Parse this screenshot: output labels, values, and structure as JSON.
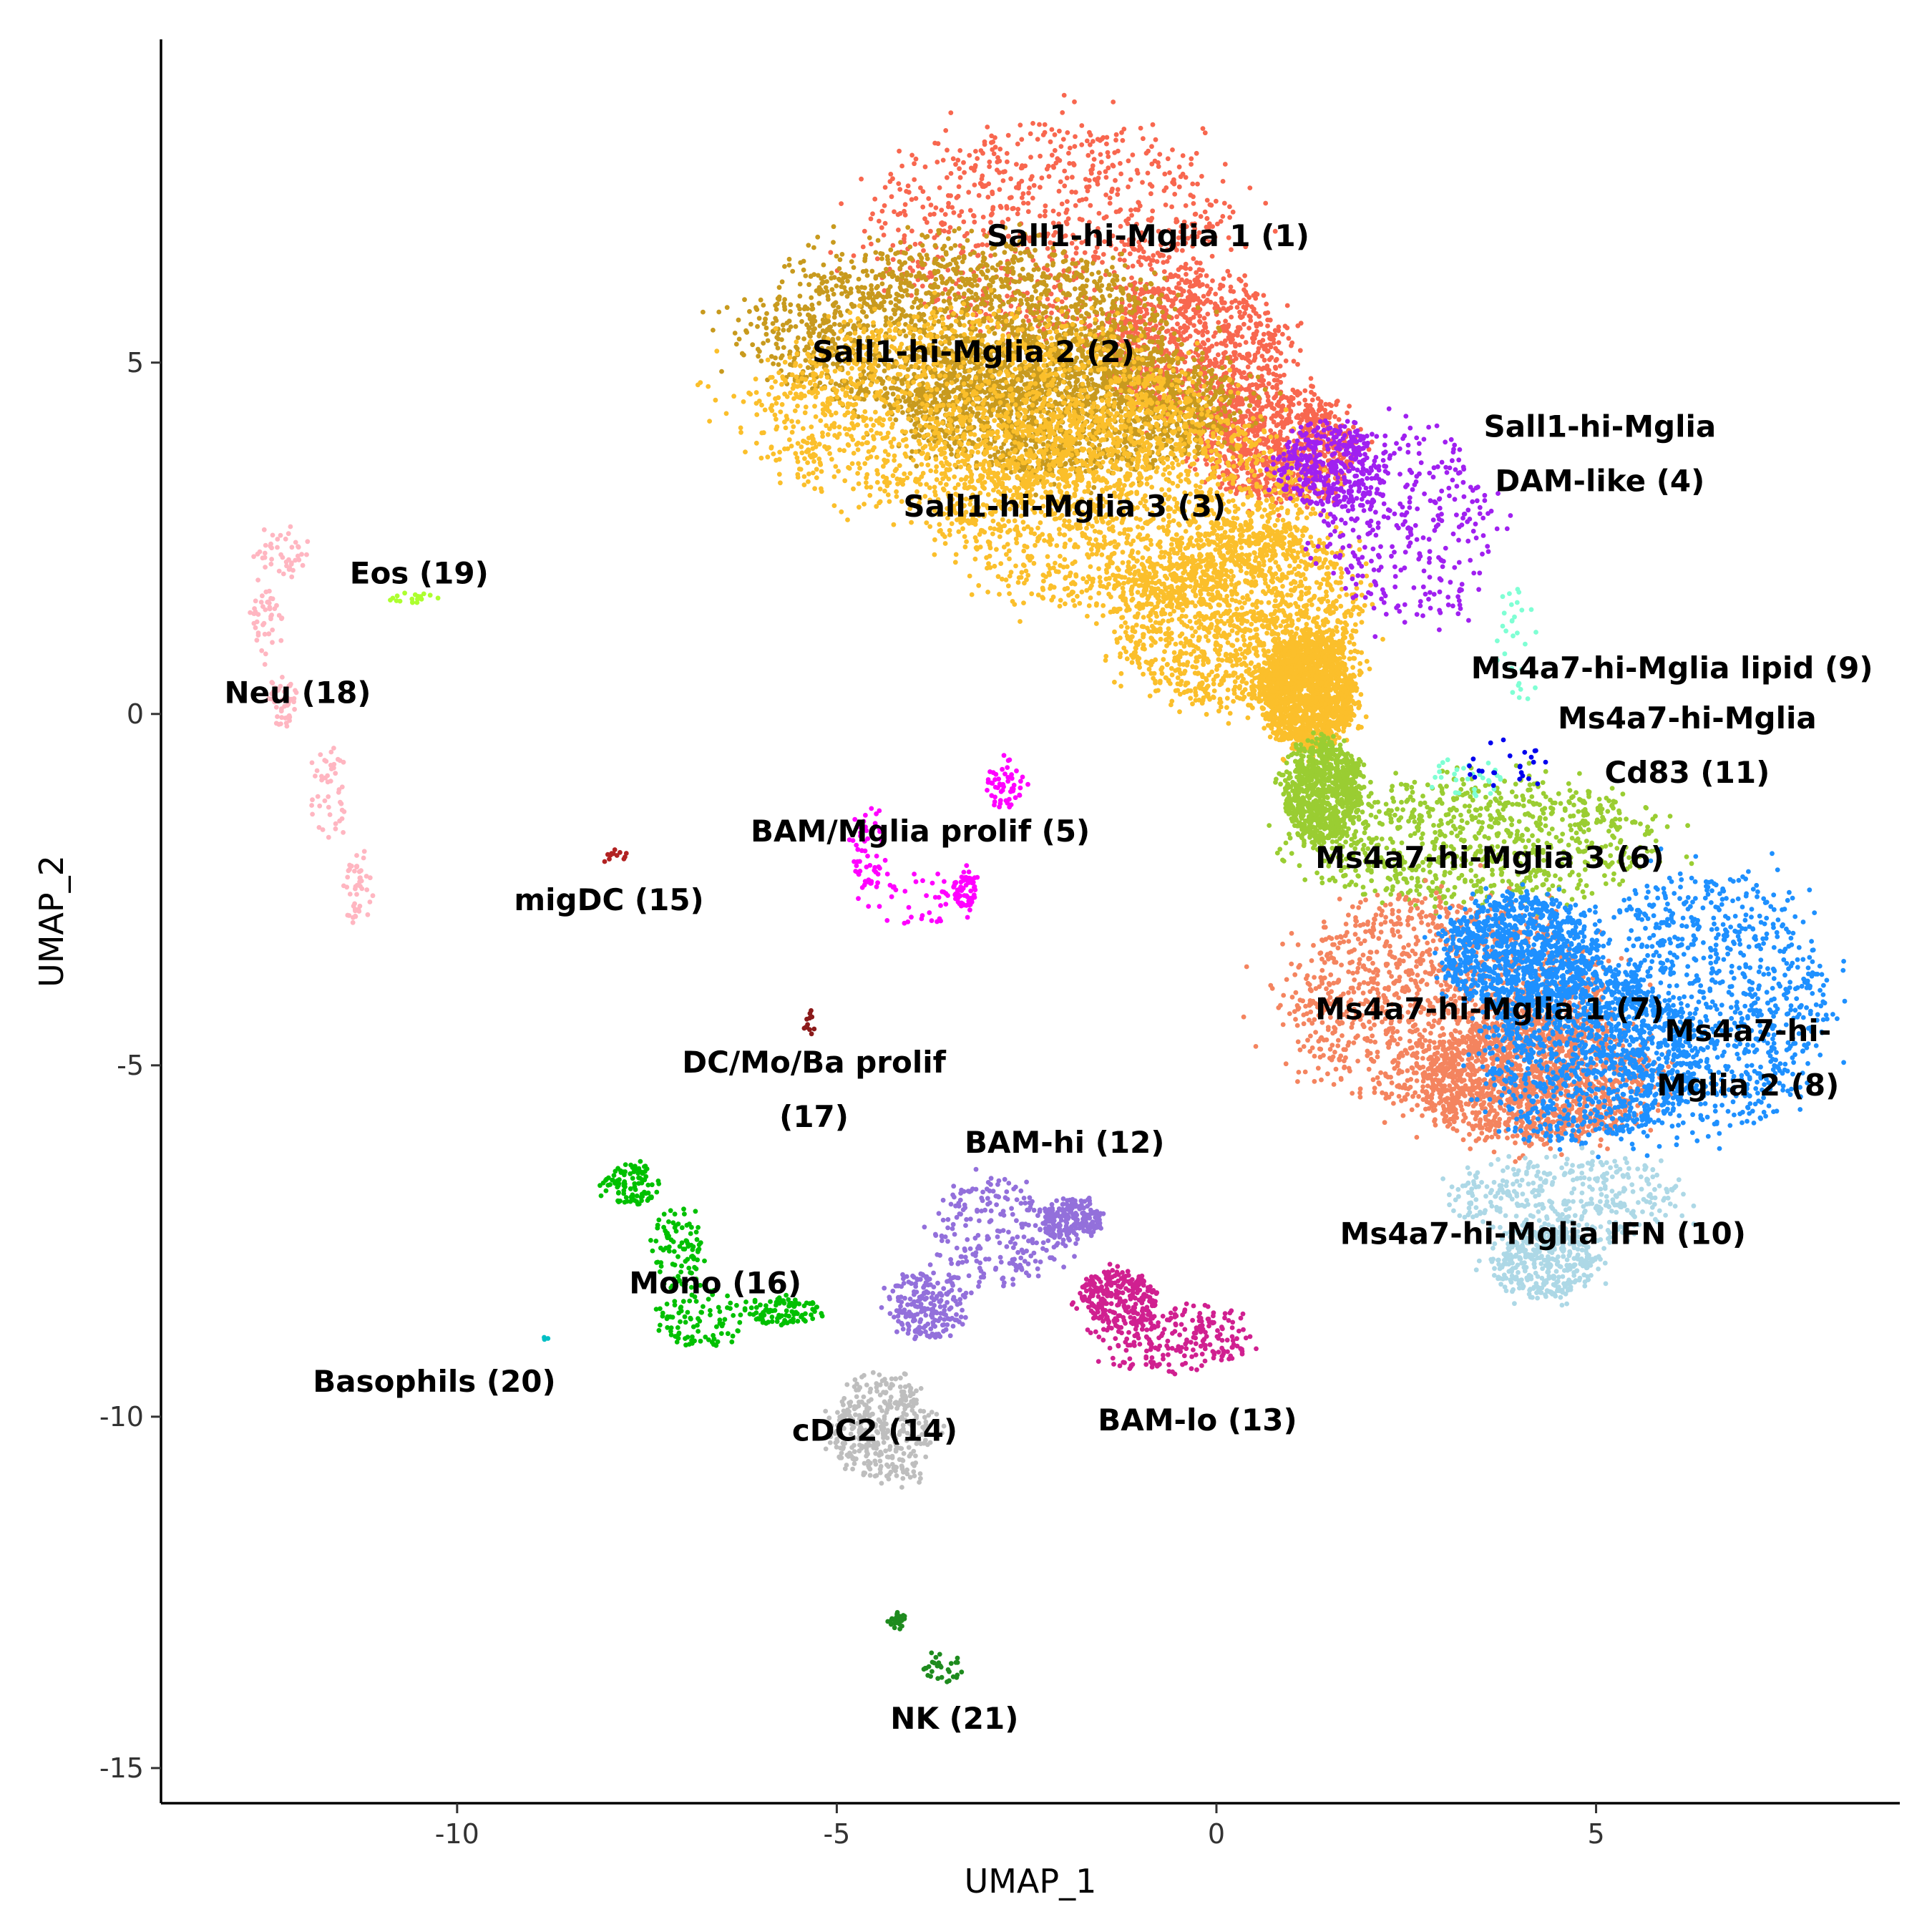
{
  "chart_data": {
    "type": "scatter",
    "title": "",
    "xlabel": "UMAP_1",
    "ylabel": "UMAP_2",
    "xlim": [
      -13.9,
      9.0
    ],
    "ylim": [
      -15.5,
      9.6
    ],
    "x_ticks": [
      -10,
      -5,
      0,
      5
    ],
    "x_tick_labels": [
      "-10",
      "-5",
      "0",
      "5"
    ],
    "y_ticks": [
      5,
      0,
      -5,
      -10,
      -15
    ],
    "y_tick_labels": [
      "5",
      "0",
      "-5",
      "-10",
      "-15"
    ],
    "grid": false,
    "legend": "none",
    "clusters": [
      {
        "name": "Sall1-hi-Mglia 1 (1)",
        "color": "#F8674F",
        "n": 2600,
        "blobs": [
          {
            "cx": -2.2,
            "cy": 6.9,
            "rx": 2.3,
            "ry": 1.5
          },
          {
            "cx": -0.3,
            "cy": 5.2,
            "rx": 1.2,
            "ry": 1.0
          },
          {
            "cx": 0.8,
            "cy": 3.8,
            "rx": 1.0,
            "ry": 0.8
          }
        ],
        "label_lines": [
          "Sall1-hi-Mglia 1 (1)"
        ],
        "label_x": -0.9,
        "label_y": 6.8
      },
      {
        "name": "Sall1-hi-Mglia 2 (2)",
        "color": "#C89A1E",
        "n": 3400,
        "blobs": [
          {
            "cx": -3.4,
            "cy": 5.5,
            "rx": 2.7,
            "ry": 1.2
          },
          {
            "cx": -2.0,
            "cy": 4.4,
            "rx": 2.2,
            "ry": 1.0
          }
        ],
        "label_lines": [
          "Sall1-hi-Mglia 2 (2)"
        ],
        "label_x": -3.2,
        "label_y": 5.15
      },
      {
        "name": "Sall1-hi-Mglia 3 (3)",
        "color": "#FBBF2B",
        "n": 6500,
        "blobs": [
          {
            "cx": -3.2,
            "cy": 4.3,
            "rx": 2.9,
            "ry": 1.4
          },
          {
            "cx": -1.2,
            "cy": 3.0,
            "rx": 2.4,
            "ry": 1.5
          },
          {
            "cx": 0.3,
            "cy": 1.4,
            "rx": 1.6,
            "ry": 1.3
          },
          {
            "cx": 1.2,
            "cy": 0.3,
            "rx": 0.6,
            "ry": 0.8
          }
        ],
        "label_lines": [
          "Sall1-hi-Mglia 3 (3)"
        ],
        "label_x": -2.0,
        "label_y": 2.95
      },
      {
        "name": "Sall1-hi-Mglia DAM-like (4)",
        "color": "#A020F0",
        "n": 700,
        "blobs": [
          {
            "cx": 2.5,
            "cy": 2.7,
            "rx": 1.1,
            "ry": 1.4
          },
          {
            "cx": 1.5,
            "cy": 3.5,
            "rx": 0.7,
            "ry": 0.6
          }
        ],
        "label_lines": [
          "Sall1-hi-Mglia",
          "DAM-like (4)"
        ],
        "label_x": 5.05,
        "label_y": 3.7
      },
      {
        "name": "BAM/Mglia prolif (5)",
        "color": "#FF00FF",
        "n": 210,
        "blobs": [
          {
            "cx": -3.9,
            "cy": -2.6,
            "rx": 0.75,
            "ry": 0.4
          },
          {
            "cx": -4.6,
            "cy": -1.9,
            "rx": 0.2,
            "ry": 0.6
          },
          {
            "cx": -2.8,
            "cy": -1.0,
            "rx": 0.25,
            "ry": 0.35
          },
          {
            "cx": -3.3,
            "cy": -2.5,
            "rx": 0.15,
            "ry": 0.3
          }
        ],
        "label_lines": [
          "BAM/Mglia prolif (5)"
        ],
        "label_x": -3.9,
        "label_y": -1.67
      },
      {
        "name": "Ms4a7-hi-Mglia 3 (6)",
        "color": "#9ACD32",
        "n": 1700,
        "blobs": [
          {
            "cx": 3.4,
            "cy": -1.8,
            "rx": 2.4,
            "ry": 0.9
          },
          {
            "cx": 1.4,
            "cy": -1.1,
            "rx": 0.5,
            "ry": 0.7
          }
        ],
        "label_lines": [
          "Ms4a7-hi-Mglia 3 (6)"
        ],
        "label_x": 3.6,
        "label_y": -2.05
      },
      {
        "name": "Ms4a7-hi-Mglia 1 (7)",
        "color": "#F4845F",
        "n": 2800,
        "blobs": [
          {
            "cx": 3.0,
            "cy": -4.1,
            "rx": 2.1,
            "ry": 1.5
          },
          {
            "cx": 4.2,
            "cy": -5.2,
            "rx": 1.5,
            "ry": 0.9
          }
        ],
        "label_lines": [
          "Ms4a7-hi-Mglia 1 (7)"
        ],
        "label_x": 3.6,
        "label_y": -4.2
      },
      {
        "name": "Ms4a7-hi-Mglia 2 (8)",
        "color": "#1E90FF",
        "n": 3200,
        "blobs": [
          {
            "cx": 6.4,
            "cy": -4.1,
            "rx": 1.6,
            "ry": 1.8
          },
          {
            "cx": 4.9,
            "cy": -4.9,
            "rx": 1.4,
            "ry": 1.2
          },
          {
            "cx": 4.0,
            "cy": -3.4,
            "rx": 1.0,
            "ry": 0.8
          }
        ],
        "label_lines": [
          "Ms4a7-hi-",
          "Mglia 2 (8)"
        ],
        "label_x": 7.0,
        "label_y": -4.9
      },
      {
        "name": "Ms4a7-hi-Mglia lipid (9)",
        "color": "#7FFFD4",
        "n": 60,
        "blobs": [
          {
            "cx": 4.0,
            "cy": 1.0,
            "rx": 0.3,
            "ry": 0.9
          },
          {
            "cx": 3.3,
            "cy": -0.9,
            "rx": 0.5,
            "ry": 0.3
          }
        ],
        "label_lines": [
          "Ms4a7-hi-Mglia lipid (9)"
        ],
        "label_x": 6.0,
        "label_y": 0.65
      },
      {
        "name": "Ms4a7-hi-Mglia IFN (10)",
        "color": "#ADD8E6",
        "n": 800,
        "blobs": [
          {
            "cx": 4.6,
            "cy": -6.9,
            "rx": 1.5,
            "ry": 0.6
          },
          {
            "cx": 4.3,
            "cy": -7.8,
            "rx": 0.7,
            "ry": 0.5
          }
        ],
        "label_lines": [
          "Ms4a7-hi-Mglia IFN (10)"
        ],
        "label_x": 4.3,
        "label_y": -7.4
      },
      {
        "name": "Ms4a7-hi-Mglia Cd83 (11)",
        "color": "#0000EE",
        "n": 25,
        "blobs": [
          {
            "cx": 3.8,
            "cy": -0.7,
            "rx": 0.5,
            "ry": 0.35
          }
        ],
        "label_lines": [
          "Ms4a7-hi-Mglia",
          "Cd83 (11)"
        ],
        "label_x": 6.2,
        "label_y": -0.45
      },
      {
        "name": "BAM-hi (12)",
        "color": "#9370DB",
        "n": 650,
        "blobs": [
          {
            "cx": -2.9,
            "cy": -7.4,
            "rx": 0.8,
            "ry": 0.75
          },
          {
            "cx": -3.8,
            "cy": -8.4,
            "rx": 0.5,
            "ry": 0.5
          },
          {
            "cx": -1.9,
            "cy": -7.2,
            "rx": 0.4,
            "ry": 0.3
          }
        ],
        "label_lines": [
          "BAM-hi (12)"
        ],
        "label_x": -2.0,
        "label_y": -6.1
      },
      {
        "name": "BAM-lo (13)",
        "color": "#D02090",
        "n": 500,
        "blobs": [
          {
            "cx": -0.6,
            "cy": -8.9,
            "rx": 1.0,
            "ry": 0.5
          },
          {
            "cx": -1.3,
            "cy": -8.3,
            "rx": 0.5,
            "ry": 0.4
          }
        ],
        "label_lines": [
          "BAM-lo (13)"
        ],
        "label_x": -0.25,
        "label_y": -10.05
      },
      {
        "name": "cDC2 (14)",
        "color": "#BEBEBE",
        "n": 400,
        "blobs": [
          {
            "cx": -4.4,
            "cy": -10.2,
            "rx": 0.65,
            "ry": 0.75
          }
        ],
        "label_lines": [
          "cDC2 (14)"
        ],
        "label_x": -4.5,
        "label_y": -10.2
      },
      {
        "name": "migDC (15)",
        "color": "#B22222",
        "n": 12,
        "blobs": [
          {
            "cx": -7.9,
            "cy": -2.1,
            "rx": 0.25,
            "ry": 0.15
          }
        ],
        "label_lines": [
          "migDC (15)"
        ],
        "label_x": -8.0,
        "label_y": -2.65
      },
      {
        "name": "Mono (16)",
        "color": "#00C000",
        "n": 380,
        "blobs": [
          {
            "cx": -7.7,
            "cy": -6.7,
            "rx": 0.35,
            "ry": 0.3
          },
          {
            "cx": -7.1,
            "cy": -7.6,
            "rx": 0.3,
            "ry": 0.6
          },
          {
            "cx": -6.8,
            "cy": -8.6,
            "rx": 0.6,
            "ry": 0.4
          },
          {
            "cx": -5.7,
            "cy": -8.5,
            "rx": 0.5,
            "ry": 0.2
          }
        ],
        "label_lines": [
          "Mono (16)"
        ],
        "label_x": -6.6,
        "label_y": -8.1
      },
      {
        "name": "DC/Mo/Ba prolif (17)",
        "color": "#8B1A1A",
        "n": 12,
        "blobs": [
          {
            "cx": -5.4,
            "cy": -4.4,
            "rx": 0.12,
            "ry": 0.2
          }
        ],
        "label_lines": [
          "DC/Mo/Ba prolif",
          "(17)"
        ],
        "label_x": -5.3,
        "label_y": -5.35
      },
      {
        "name": "Neu (18)",
        "color": "#FFB6C1",
        "n": 230,
        "blobs": [
          {
            "cx": -12.3,
            "cy": 2.3,
            "rx": 0.35,
            "ry": 0.3
          },
          {
            "cx": -12.5,
            "cy": 1.3,
            "rx": 0.2,
            "ry": 0.6
          },
          {
            "cx": -12.3,
            "cy": 0.2,
            "rx": 0.2,
            "ry": 0.4
          },
          {
            "cx": -11.7,
            "cy": -1.2,
            "rx": 0.25,
            "ry": 0.7
          },
          {
            "cx": -11.3,
            "cy": -2.5,
            "rx": 0.2,
            "ry": 0.5
          }
        ],
        "label_lines": [
          "Neu (18)"
        ],
        "label_x": -12.1,
        "label_y": 0.3
      },
      {
        "name": "Eos (19)",
        "color": "#ADFF2F",
        "n": 18,
        "blobs": [
          {
            "cx": -10.6,
            "cy": 1.65,
            "rx": 0.35,
            "ry": 0.08
          }
        ],
        "label_lines": [
          "Eos (19)"
        ],
        "label_x": -10.5,
        "label_y": 2.0
      },
      {
        "name": "Basophils (20)",
        "color": "#00BFC4",
        "n": 3,
        "blobs": [
          {
            "cx": -8.8,
            "cy": -8.9,
            "rx": 0.08,
            "ry": 0.05
          }
        ],
        "label_lines": [
          "Basophils (20)"
        ],
        "label_x": -10.3,
        "label_y": -9.5
      },
      {
        "name": "NK (21)",
        "color": "#1E8B1E",
        "n": 60,
        "blobs": [
          {
            "cx": -4.2,
            "cy": -12.9,
            "rx": 0.12,
            "ry": 0.1
          },
          {
            "cx": -3.6,
            "cy": -13.6,
            "rx": 0.25,
            "ry": 0.2
          }
        ],
        "label_lines": [
          "NK (21)"
        ],
        "label_x": -3.45,
        "label_y": -14.3
      }
    ]
  }
}
